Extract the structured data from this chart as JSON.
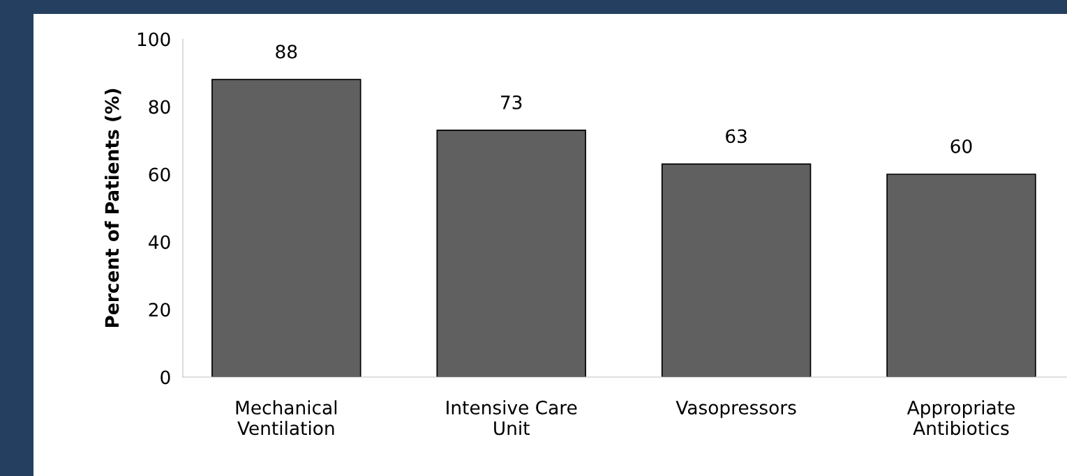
{
  "chart_data": {
    "type": "bar",
    "ylabel": "Percent of Patients (%)",
    "categories": [
      "Mechanical\nVentilation",
      "Intensive Care\nUnit",
      "Vasopressors",
      "Appropriate\nAntibiotics"
    ],
    "values": [
      88,
      73,
      63,
      60
    ],
    "color": "#606060",
    "ylim": [
      0,
      100
    ],
    "yticks": [
      0,
      20,
      40,
      60,
      80,
      100
    ],
    "grid": false,
    "data_labels": true
  }
}
